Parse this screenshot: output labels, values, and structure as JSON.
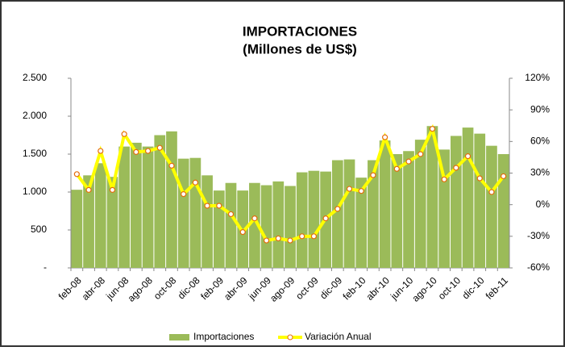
{
  "chart_data": {
    "type": "bar-line",
    "title": "IMPORTACIONES",
    "subtitle": "(Millones  de US$)",
    "categories": [
      "feb-08",
      null,
      "abr-08",
      null,
      "jun-08",
      null,
      "ago-08",
      null,
      "oct-08",
      null,
      "dic-08",
      null,
      "feb-09",
      null,
      "abr-09",
      null,
      "jun-09",
      null,
      "ago-09",
      null,
      "oct-09",
      null,
      "dic-09",
      null,
      "feb-10",
      null,
      "abr-10",
      null,
      "jun-10",
      null,
      "ago-10",
      null,
      "oct-10",
      null,
      "dic-10",
      null,
      "feb-11"
    ],
    "series": [
      {
        "name": "Importaciones",
        "type": "bar",
        "color": "#9bbb59",
        "values": [
          1030,
          1220,
          1380,
          1200,
          1600,
          1650,
          1600,
          1750,
          1800,
          1440,
          1450,
          1220,
          1020,
          1120,
          1020,
          1120,
          1090,
          1140,
          1080,
          1260,
          1280,
          1270,
          1420,
          1430,
          1190,
          1420,
          1680,
          1500,
          1540,
          1690,
          1870,
          1560,
          1740,
          1850,
          1770,
          1610,
          1500
        ]
      },
      {
        "name": "Variación Anual",
        "type": "line",
        "axis": "y2",
        "color": "#ffff00",
        "marker_edge": "#e46c0a",
        "values": [
          29,
          14,
          51,
          14,
          67,
          50,
          51,
          54,
          37,
          10,
          21,
          -1,
          -1,
          -9,
          -26,
          -13,
          -34,
          -32,
          -34,
          -30,
          -30,
          -13,
          -4,
          15,
          13,
          28,
          64,
          34,
          41,
          48,
          72,
          24,
          35,
          46,
          25,
          12,
          27
        ]
      }
    ],
    "ylim": [
      0,
      2500
    ],
    "yticks": [
      {
        "value": 0,
        "label": "-"
      },
      500,
      {
        "value": 1000,
        "label": "1.000"
      },
      {
        "value": 1500,
        "label": "1.500"
      },
      {
        "value": 2000,
        "label": "2.000"
      },
      {
        "value": 2500,
        "label": "2.500"
      }
    ],
    "y2lim": [
      -60,
      120
    ],
    "y2ticks": [
      {
        "value": -60,
        "label": "-60%"
      },
      {
        "value": -30,
        "label": "-30%"
      },
      {
        "value": 0,
        "label": "0%"
      },
      {
        "value": 30,
        "label": "30%"
      },
      {
        "value": 60,
        "label": "60%"
      },
      {
        "value": 90,
        "label": "90%"
      },
      {
        "value": 120,
        "label": "120%"
      }
    ],
    "grid": false,
    "legend": "bottom"
  }
}
